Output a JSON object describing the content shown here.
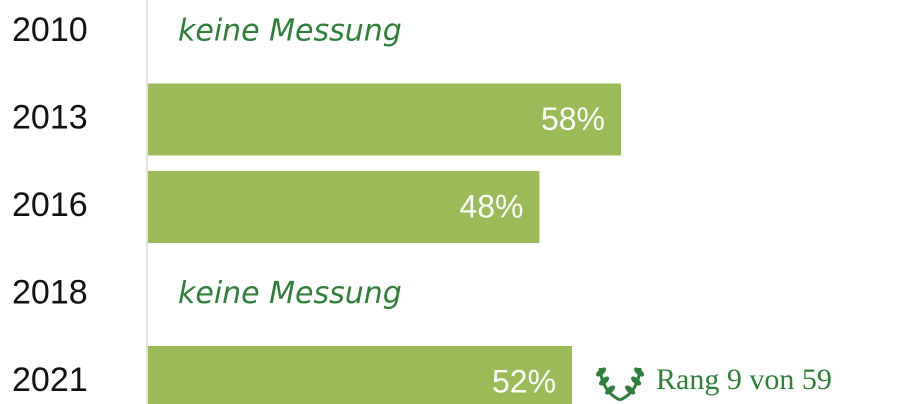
{
  "chart_data": {
    "type": "bar",
    "orientation": "horizontal",
    "categories": [
      "2010",
      "2013",
      "2016",
      "2018",
      "2021"
    ],
    "values": [
      null,
      58,
      48,
      null,
      52
    ],
    "value_labels": [
      null,
      "58%",
      "48%",
      null,
      "52%"
    ],
    "missing_label": "keine Messung",
    "annotation": "Rang 9 von 59",
    "color": "#9bbb59"
  }
}
